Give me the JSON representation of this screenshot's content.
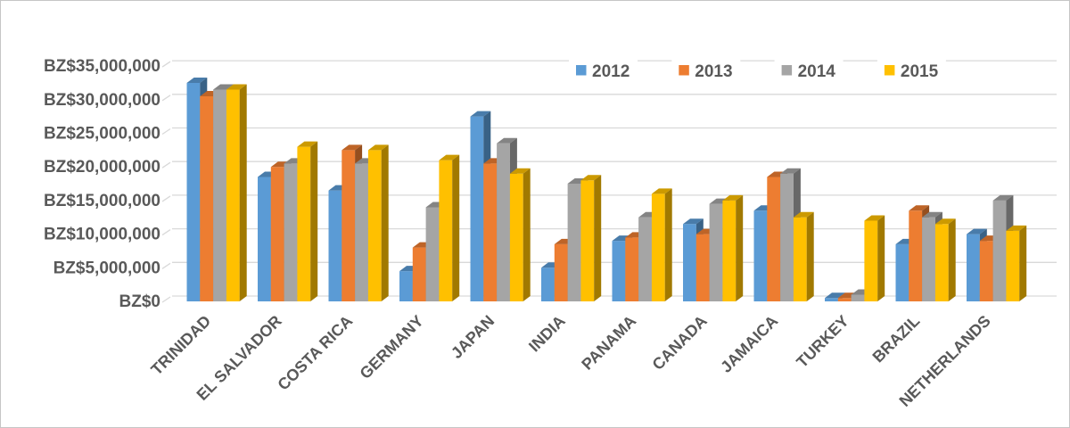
{
  "chart_data": {
    "type": "bar",
    "variant": "3d-clustered-column",
    "title": "",
    "categories": [
      "TRINIDAD",
      "EL SALVADOR",
      "COSTA RICA",
      "GERMANY",
      "JAPAN",
      "INDIA",
      "PANAMA",
      "CANADA",
      "JAMAICA",
      "TURKEY",
      "BRAZIL",
      "NETHERLANDS"
    ],
    "series": [
      {
        "name": "2012",
        "color": "#5B9BD5",
        "values": [
          32500000,
          18500000,
          16500000,
          4500000,
          27500000,
          5000000,
          9000000,
          11500000,
          13500000,
          500000,
          8500000,
          10000000
        ]
      },
      {
        "name": "2013",
        "color": "#ED7D31",
        "values": [
          30500000,
          20000000,
          22500000,
          8000000,
          20500000,
          8500000,
          9500000,
          10000000,
          18500000,
          500000,
          13500000,
          9000000
        ]
      },
      {
        "name": "2014",
        "color": "#A5A5A5",
        "values": [
          31500000,
          20500000,
          20500000,
          14000000,
          23500000,
          17500000,
          12500000,
          14500000,
          19000000,
          1000000,
          12500000,
          15000000
        ]
      },
      {
        "name": "2015",
        "color": "#FFC000",
        "values": [
          31500000,
          23000000,
          22500000,
          21000000,
          19000000,
          18000000,
          16000000,
          15000000,
          12500000,
          12000000,
          11500000,
          10500000
        ]
      }
    ],
    "y_axis": {
      "prefix": "BZ$",
      "min": 0,
      "max": 35000000,
      "step": 5000000,
      "tick_labels": [
        "BZ$0",
        "BZ$5,000,000",
        "BZ$10,000,000",
        "BZ$15,000,000",
        "BZ$20,000,000",
        "BZ$25,000,000",
        "BZ$30,000,000",
        "BZ$35,000,000"
      ]
    },
    "x_axis": {
      "label_rotation_deg": 45
    },
    "legend": {
      "position": "top",
      "entries": [
        "2012",
        "2013",
        "2014",
        "2015"
      ]
    },
    "grid": true,
    "colors": {
      "gridline": "#D9D9D9",
      "axis_text": "#595959",
      "background": "#FFFFFF",
      "border": "#C6C6C6"
    }
  }
}
